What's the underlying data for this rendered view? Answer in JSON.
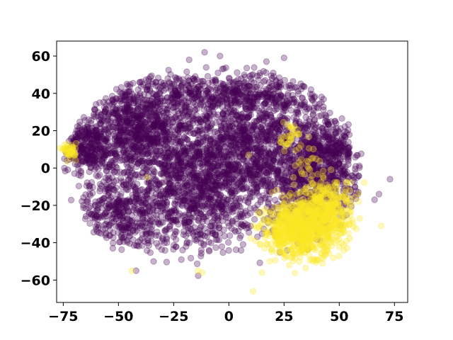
{
  "chart_data": {
    "type": "scatter",
    "title": "",
    "xlabel": "",
    "ylabel": "",
    "xlim": [
      -78,
      81
    ],
    "ylim": [
      -72,
      68
    ],
    "x_ticks": [
      -75,
      -50,
      -25,
      0,
      25,
      50,
      75
    ],
    "x_tick_labels": [
      "−75",
      "−50",
      "−25",
      "0",
      "25",
      "50",
      "75"
    ],
    "y_ticks": [
      -60,
      -40,
      -20,
      0,
      20,
      40,
      60
    ],
    "y_tick_labels": [
      "−60",
      "−40",
      "−20",
      "0",
      "20",
      "40",
      "60"
    ],
    "grid": false,
    "legend": "none",
    "marker_alpha": 0.3,
    "colors": {
      "class_0": "#440154",
      "class_1": "#fde725"
    },
    "series": [
      {
        "class": 0,
        "color": "#440154",
        "clusters": [
          {
            "cx": -42,
            "cy": 22,
            "sx": 13,
            "sy": 13,
            "n": 900
          },
          {
            "cx": -15,
            "cy": -12,
            "sx": 16,
            "sy": 16,
            "n": 1100
          },
          {
            "cx": 12,
            "cy": 15,
            "sx": 19,
            "sy": 17,
            "n": 1300
          },
          {
            "cx": 38,
            "cy": -8,
            "sx": 11,
            "sy": 12,
            "n": 500
          },
          {
            "cx": -65,
            "cy": 12,
            "sx": 6,
            "sy": 7,
            "n": 250
          },
          {
            "cx": -50,
            "cy": -25,
            "sx": 9,
            "sy": 11,
            "n": 350
          },
          {
            "cx": 45,
            "cy": 10,
            "sx": 8,
            "sy": 7,
            "n": 250
          },
          {
            "cx": -5,
            "cy": 40,
            "sx": 20,
            "sy": 5,
            "n": 350
          }
        ],
        "outliers": [
          {
            "x": -18,
            "y": 58
          },
          {
            "x": -11,
            "y": 62
          },
          {
            "x": -4,
            "y": 60
          },
          {
            "x": 25,
            "y": 59
          },
          {
            "x": 17,
            "y": 57
          },
          {
            "x": -42,
            "y": -55
          },
          {
            "x": 68,
            "y": -14
          },
          {
            "x": 73,
            "y": -6
          },
          {
            "x": 66,
            "y": -17
          }
        ]
      },
      {
        "class": 1,
        "color": "#fde725",
        "clusters": [
          {
            "cx": 33,
            "cy": -33,
            "sx": 9,
            "sy": 7,
            "n": 750
          },
          {
            "cx": 44,
            "cy": -20,
            "sx": 7,
            "sy": 7,
            "n": 320
          },
          {
            "cx": -72,
            "cy": 9,
            "sx": 1.5,
            "sy": 2,
            "n": 45
          },
          {
            "cx": 28,
            "cy": 17,
            "sx": 3,
            "sy": 4,
            "n": 35
          },
          {
            "cx": 35,
            "cy": 2,
            "sx": 3,
            "sy": 5,
            "n": 20
          }
        ],
        "outliers": [
          {
            "x": -44,
            "y": -55
          },
          {
            "x": -14,
            "y": -55
          },
          {
            "x": -12,
            "y": -56
          },
          {
            "x": 11,
            "y": -66
          },
          {
            "x": 69,
            "y": -31
          },
          {
            "x": -37,
            "y": -5
          },
          {
            "x": 15,
            "y": -56
          },
          {
            "x": 28,
            "y": -48
          },
          {
            "x": 9,
            "y": 7
          }
        ]
      }
    ]
  }
}
